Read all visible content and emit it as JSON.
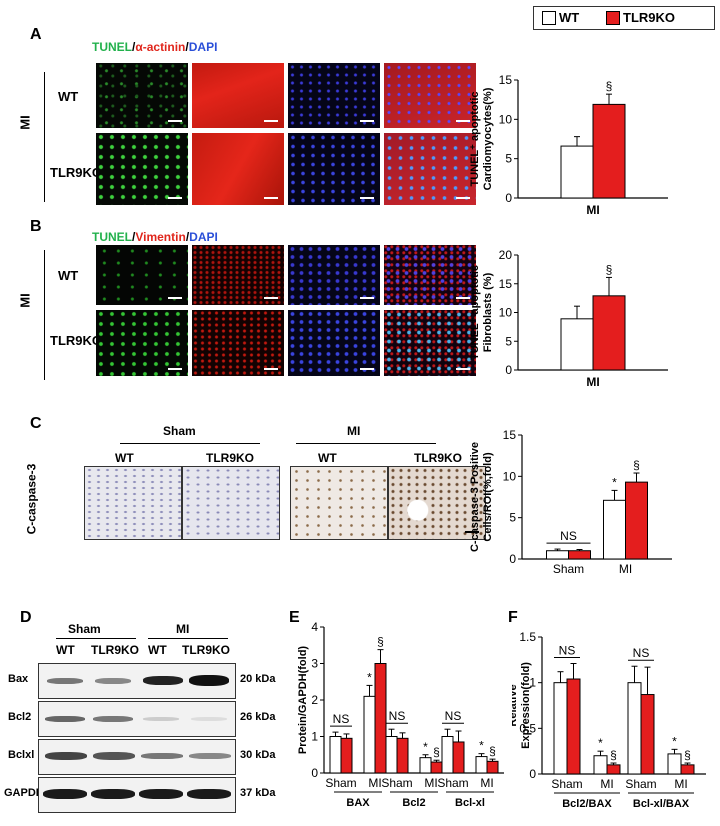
{
  "legend": {
    "wt": "WT",
    "ko": "TLR9KO"
  },
  "colors": {
    "wt": "#ffffff",
    "ko": "#e41e1e",
    "green": "#22b14c",
    "red": "#e0261c",
    "blue": "#2a4fd8"
  },
  "panelA": {
    "letter": "A",
    "stain": {
      "a": "TUNEL",
      "sep1": "/",
      "b": "α-actinin",
      "sep2": "/",
      "c": "DAPI"
    },
    "group": "MI",
    "rows": [
      "WT",
      "TLR9KO"
    ]
  },
  "panelB": {
    "letter": "B",
    "stain": {
      "a": "TUNEL",
      "sep1": "/",
      "b": "Vimentin",
      "sep2": "/",
      "c": "DAPI"
    },
    "group": "MI",
    "rows": [
      "WT",
      "TLR9KO"
    ]
  },
  "panelC": {
    "letter": "C",
    "groups": [
      "Sham",
      "MI"
    ],
    "cols": [
      "WT",
      "TLR9KO",
      "WT",
      "TLR9KO"
    ],
    "row_label": "C-caspase-3"
  },
  "panelD": {
    "letter": "D",
    "groups": [
      "Sham",
      "MI"
    ],
    "cols": [
      "WT",
      "TLR9KO",
      "WT",
      "TLR9KO"
    ],
    "proteins": [
      {
        "name": "Bax",
        "kda": "20 kDa"
      },
      {
        "name": "Bcl2",
        "kda": "26 kDa"
      },
      {
        "name": "Bclxl",
        "kda": "30 kDa"
      },
      {
        "name": "GAPDH",
        "kda": "37 kDa"
      }
    ]
  },
  "panelE": {
    "letter": "E"
  },
  "panelF": {
    "letter": "F"
  },
  "chart_data": [
    {
      "id": "A-chart",
      "type": "bar",
      "ylabel": "TUNEL⁺ apoptotic Cardiomyocytes(%)",
      "xlabel": "MI",
      "ylim": [
        0,
        15
      ],
      "yticks": [
        0,
        5,
        10,
        15
      ],
      "categories": [
        "MI"
      ],
      "series": [
        {
          "name": "WT",
          "values": [
            6.6
          ],
          "err": [
            1.2
          ]
        },
        {
          "name": "TLR9KO",
          "values": [
            11.9
          ],
          "err": [
            1.3
          ]
        }
      ],
      "annotations": [
        {
          "series": 1,
          "group": 0,
          "text": "§"
        }
      ]
    },
    {
      "id": "B-chart",
      "type": "bar",
      "ylabel": "TUNEL⁺ apoptotic Fibroblasts (%)",
      "xlabel": "MI",
      "ylim": [
        0,
        20
      ],
      "yticks": [
        0,
        5,
        10,
        15,
        20
      ],
      "categories": [
        "MI"
      ],
      "series": [
        {
          "name": "WT",
          "values": [
            8.9
          ],
          "err": [
            2.2
          ]
        },
        {
          "name": "TLR9KO",
          "values": [
            12.9
          ],
          "err": [
            3.2
          ]
        }
      ],
      "annotations": [
        {
          "series": 1,
          "group": 0,
          "text": "§"
        }
      ]
    },
    {
      "id": "C-chart",
      "type": "bar",
      "ylabel": "C-caspase-3 Positive Cells/ROI(%,fold)",
      "ylim": [
        0,
        15
      ],
      "yticks": [
        0,
        5,
        10,
        15
      ],
      "categories": [
        "Sham",
        "MI"
      ],
      "series": [
        {
          "name": "WT",
          "values": [
            1.0,
            7.1
          ],
          "err": [
            0.2,
            1.2
          ]
        },
        {
          "name": "TLR9KO",
          "values": [
            1.0,
            9.3
          ],
          "err": [
            0.15,
            1.1
          ]
        }
      ],
      "annotations": [
        {
          "series": 0,
          "group": 1,
          "text": "*"
        },
        {
          "series": 1,
          "group": 1,
          "text": "§"
        }
      ],
      "ns": [
        {
          "group": 0,
          "text": "NS"
        }
      ]
    },
    {
      "id": "E-chart",
      "type": "bar",
      "ylabel": "Protein/GAPDH(fold)",
      "ylim": [
        0,
        4
      ],
      "yticks": [
        0,
        1,
        2,
        3,
        4
      ],
      "categories": [
        "Sham",
        "MI",
        "Sham",
        "MI",
        "Sham",
        "MI"
      ],
      "groups_label": [
        "BAX",
        "Bcl2",
        "Bcl-xl"
      ],
      "series": [
        {
          "name": "WT",
          "values": [
            1.0,
            2.1,
            1.0,
            0.42,
            1.0,
            0.45
          ],
          "err": [
            0.12,
            0.3,
            0.2,
            0.08,
            0.2,
            0.08
          ]
        },
        {
          "name": "TLR9KO",
          "values": [
            0.95,
            3.0,
            0.95,
            0.3,
            0.85,
            0.32
          ],
          "err": [
            0.12,
            0.38,
            0.15,
            0.05,
            0.3,
            0.06
          ]
        }
      ],
      "annotations": [
        {
          "series": 0,
          "group": 1,
          "text": "*"
        },
        {
          "series": 1,
          "group": 1,
          "text": "§"
        },
        {
          "series": 0,
          "group": 3,
          "text": "*"
        },
        {
          "series": 1,
          "group": 3,
          "text": "§"
        },
        {
          "series": 0,
          "group": 5,
          "text": "*"
        },
        {
          "series": 1,
          "group": 5,
          "text": "§"
        }
      ],
      "ns": [
        {
          "group": 0,
          "text": "NS"
        },
        {
          "group": 2,
          "text": "NS"
        },
        {
          "group": 4,
          "text": "NS"
        }
      ]
    },
    {
      "id": "F-chart",
      "type": "bar",
      "ylabel": "Relative Expression(fold)",
      "ylim": [
        0,
        1.5
      ],
      "yticks": [
        0,
        0.5,
        1,
        1.5
      ],
      "categories": [
        "Sham",
        "MI",
        "Sham",
        "MI"
      ],
      "groups_label": [
        "Bcl2/BAX",
        "Bcl-xl/BAX"
      ],
      "series": [
        {
          "name": "WT",
          "values": [
            1.0,
            0.2,
            1.0,
            0.22
          ],
          "err": [
            0.12,
            0.05,
            0.18,
            0.05
          ]
        },
        {
          "name": "TLR9KO",
          "values": [
            1.04,
            0.1,
            0.87,
            0.1
          ],
          "err": [
            0.17,
            0.02,
            0.3,
            0.02
          ]
        }
      ],
      "annotations": [
        {
          "series": 0,
          "group": 1,
          "text": "*"
        },
        {
          "series": 1,
          "group": 1,
          "text": "§"
        },
        {
          "series": 0,
          "group": 3,
          "text": "*"
        },
        {
          "series": 1,
          "group": 3,
          "text": "§"
        }
      ],
      "ns": [
        {
          "group": 0,
          "text": "NS"
        },
        {
          "group": 2,
          "text": "NS"
        }
      ]
    }
  ]
}
